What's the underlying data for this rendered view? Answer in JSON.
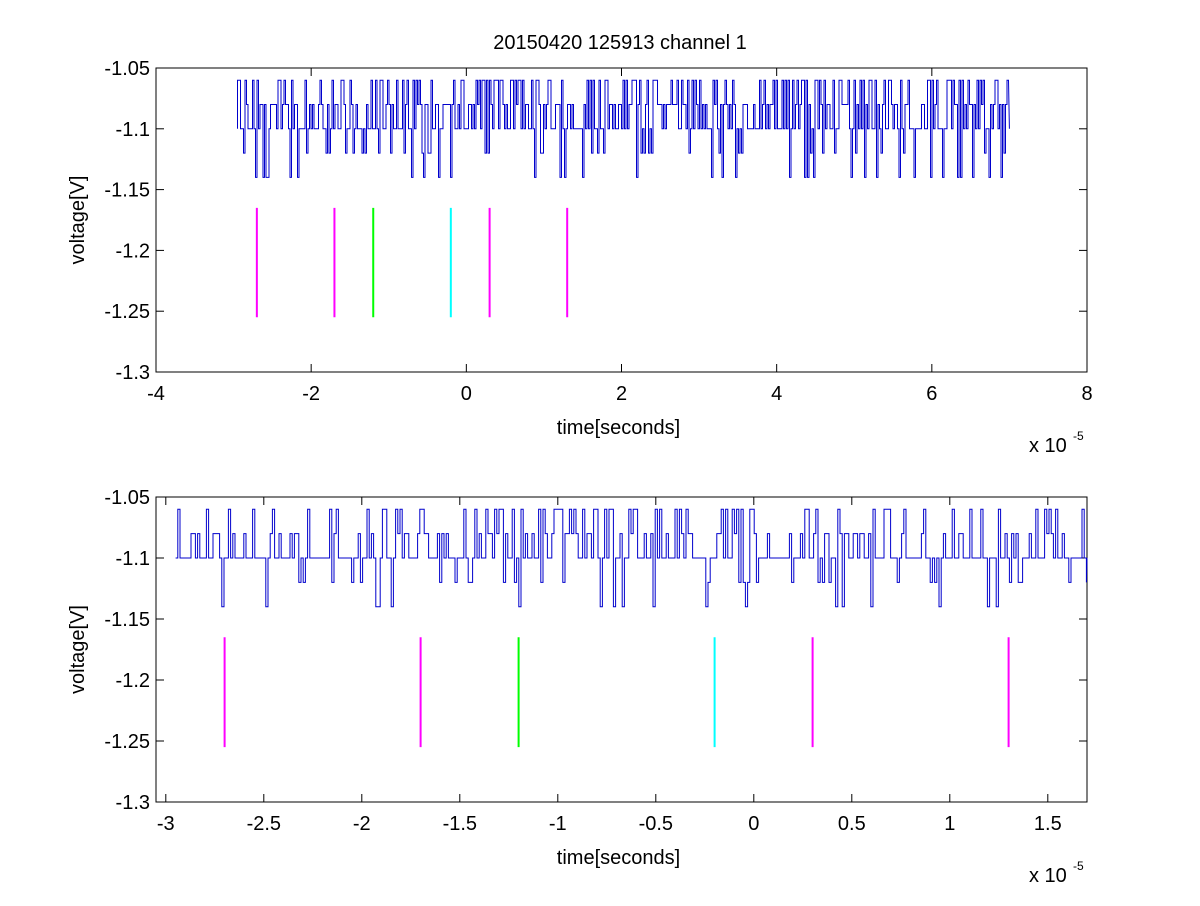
{
  "figure": {
    "title": "20150420 125913 channel 1"
  },
  "chart_data": [
    {
      "type": "line",
      "title": "20150420 125913 channel 1",
      "xlabel": "time[seconds]",
      "ylabel": "voltage[V]",
      "x_multiplier_label": "x 10",
      "x_multiplier_exp": "-5",
      "xlim": [
        -4,
        8
      ],
      "ylim": [
        -1.3,
        -1.05
      ],
      "xticks": [
        -4,
        -2,
        0,
        2,
        4,
        6,
        8
      ],
      "xtick_labels": [
        "-4",
        "-2",
        "0",
        "2",
        "4",
        "6",
        "8"
      ],
      "yticks": [
        -1.05,
        -1.1,
        -1.15,
        -1.2,
        -1.25,
        -1.3
      ],
      "ytick_labels": [
        "-1.05",
        "-1.1",
        "-1.15",
        "-1.2",
        "-1.25",
        "-1.3"
      ],
      "grid": false,
      "signal": {
        "color": "#0000cc",
        "x_start": -2.95,
        "x_end": 7.0,
        "baseline": -1.1,
        "levels": [
          -1.06,
          -1.08,
          -1.1,
          -1.12,
          -1.14
        ]
      },
      "markers": [
        {
          "x": -2.7,
          "y_top": -1.165,
          "y_bottom": -1.255,
          "color": "#ff00ff"
        },
        {
          "x": -1.7,
          "y_top": -1.165,
          "y_bottom": -1.255,
          "color": "#ff00ff"
        },
        {
          "x": -1.2,
          "y_top": -1.165,
          "y_bottom": -1.255,
          "color": "#00ff00"
        },
        {
          "x": -0.2,
          "y_top": -1.165,
          "y_bottom": -1.255,
          "color": "#00ffff"
        },
        {
          "x": 0.3,
          "y_top": -1.165,
          "y_bottom": -1.255,
          "color": "#ff00ff"
        },
        {
          "x": 1.3,
          "y_top": -1.165,
          "y_bottom": -1.255,
          "color": "#ff00ff"
        }
      ]
    },
    {
      "type": "line",
      "title": "",
      "xlabel": "time[seconds]",
      "ylabel": "voltage[V]",
      "x_multiplier_label": "x 10",
      "x_multiplier_exp": "-5",
      "xlim": [
        -3.05,
        1.7
      ],
      "ylim": [
        -1.3,
        -1.05
      ],
      "xticks": [
        -3,
        -2.5,
        -2,
        -1.5,
        -1,
        -0.5,
        0,
        0.5,
        1,
        1.5
      ],
      "xtick_labels": [
        "-3",
        "-2.5",
        "-2",
        "-1.5",
        "-1",
        "-0.5",
        "0",
        "0.5",
        "1",
        "1.5"
      ],
      "yticks": [
        -1.05,
        -1.1,
        -1.15,
        -1.2,
        -1.25,
        -1.3
      ],
      "ytick_labels": [
        "-1.05",
        "-1.1",
        "-1.15",
        "-1.2",
        "-1.25",
        "-1.3"
      ],
      "grid": false,
      "signal": {
        "color": "#0000cc",
        "x_start": -2.95,
        "x_end": 1.7,
        "baseline": -1.1,
        "levels": [
          -1.06,
          -1.08,
          -1.1,
          -1.12,
          -1.14
        ]
      },
      "markers": [
        {
          "x": -2.7,
          "y_top": -1.165,
          "y_bottom": -1.255,
          "color": "#ff00ff"
        },
        {
          "x": -1.7,
          "y_top": -1.165,
          "y_bottom": -1.255,
          "color": "#ff00ff"
        },
        {
          "x": -1.2,
          "y_top": -1.165,
          "y_bottom": -1.255,
          "color": "#00ff00"
        },
        {
          "x": -0.2,
          "y_top": -1.165,
          "y_bottom": -1.255,
          "color": "#00ffff"
        },
        {
          "x": 0.3,
          "y_top": -1.165,
          "y_bottom": -1.255,
          "color": "#ff00ff"
        },
        {
          "x": 1.3,
          "y_top": -1.165,
          "y_bottom": -1.255,
          "color": "#ff00ff"
        }
      ]
    }
  ]
}
